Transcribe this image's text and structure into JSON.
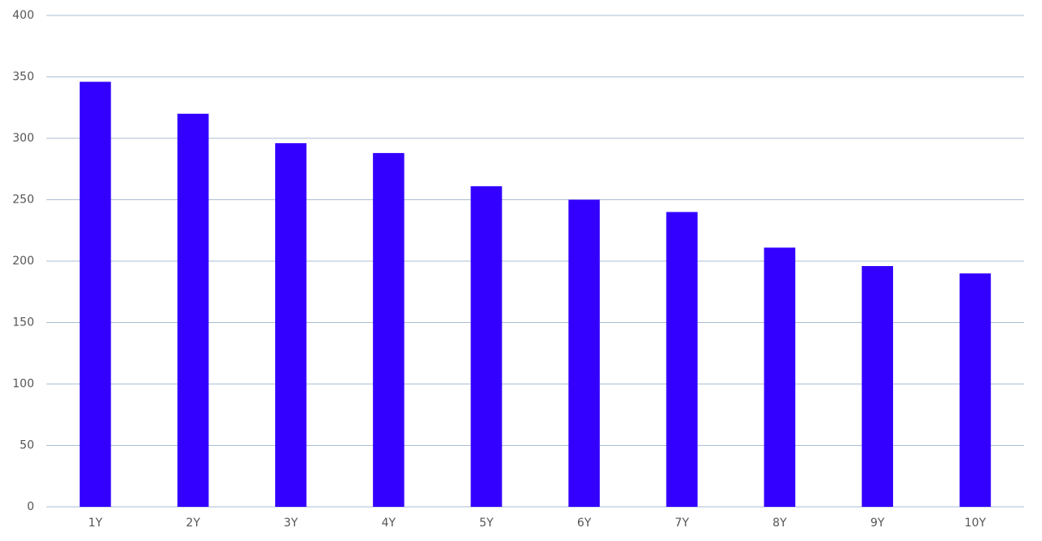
{
  "chart_data": {
    "type": "bar",
    "categories": [
      "1Y",
      "2Y",
      "3Y",
      "4Y",
      "5Y",
      "6Y",
      "7Y",
      "8Y",
      "9Y",
      "10Y"
    ],
    "values": [
      346,
      320,
      296,
      288,
      261,
      250,
      240,
      211,
      196,
      190
    ],
    "color": "#3300ff",
    "ylim": [
      0,
      400
    ],
    "yticks": [
      0,
      50,
      100,
      150,
      200,
      250,
      300,
      350,
      400
    ],
    "grid": true
  }
}
